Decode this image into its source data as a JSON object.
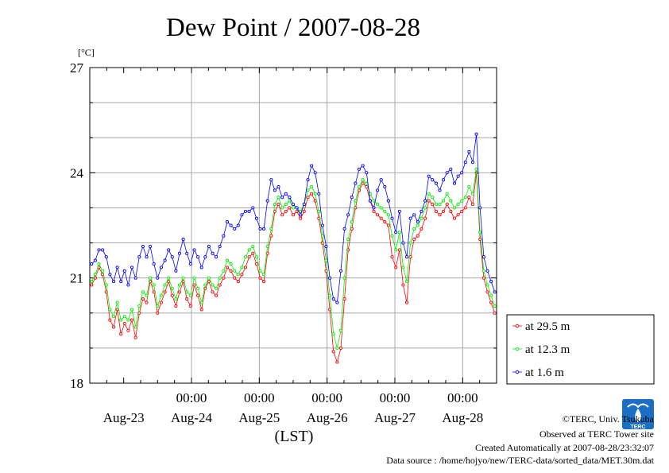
{
  "chart_data": {
    "type": "line",
    "title": "Dew Point / 2007-08-28",
    "ylabel": "[°C]",
    "xlabel": "(LST)",
    "ylim": [
      18,
      27
    ],
    "yticks": [
      "18",
      "21",
      "24",
      "27"
    ],
    "x_range_days": [
      -0.5,
      5.5
    ],
    "time_ticks": [
      "00:00",
      "00:00",
      "00:00",
      "00:00",
      "00:00"
    ],
    "time_tick_positions": [
      1,
      2,
      3,
      4,
      5
    ],
    "date_labels": [
      "Aug-23",
      "Aug-24",
      "Aug-25",
      "Aug-26",
      "Aug-27",
      "Aug-28"
    ],
    "grid": true,
    "legend_position": "bottom-right",
    "series": [
      {
        "name": "at 29.5 m",
        "color": "#ff0000",
        "values": [
          20.8,
          21.0,
          21.3,
          21.1,
          20.6,
          19.8,
          19.6,
          20.1,
          19.4,
          19.7,
          19.5,
          19.8,
          19.3,
          20.0,
          20.4,
          20.3,
          20.9,
          20.6,
          20.0,
          20.3,
          20.6,
          20.9,
          20.5,
          20.2,
          20.6,
          20.9,
          20.4,
          20.2,
          20.8,
          20.5,
          20.1,
          20.7,
          20.9,
          20.6,
          20.5,
          20.8,
          21.0,
          21.3,
          21.2,
          21.0,
          20.9,
          21.1,
          21.3,
          21.6,
          21.7,
          21.4,
          21.0,
          20.9,
          21.7,
          22.2,
          22.9,
          23.1,
          22.8,
          22.9,
          23.0,
          22.8,
          22.9,
          22.7,
          22.9,
          23.3,
          23.4,
          23.2,
          22.7,
          22.0,
          21.2,
          20.1,
          18.9,
          18.6,
          19.0,
          20.4,
          21.8,
          22.4,
          23.0,
          23.5,
          23.7,
          23.6,
          23.2,
          22.9,
          22.8,
          22.7,
          22.6,
          22.5,
          21.6,
          21.3,
          21.8,
          20.8,
          20.3,
          21.6,
          22.1,
          22.2,
          22.4,
          22.7,
          23.2,
          23.1,
          22.9,
          22.8,
          22.9,
          23.1,
          22.9,
          22.7,
          22.8,
          22.9,
          23.0,
          23.3,
          23.1,
          24.0,
          22.1,
          21.0,
          20.6,
          20.3,
          20.0
        ]
      },
      {
        "name": "at 12.3 m",
        "color": "#00ee00",
        "values": [
          20.9,
          21.1,
          21.4,
          21.2,
          20.8,
          20.1,
          19.9,
          20.3,
          19.8,
          19.9,
          19.8,
          20.1,
          19.6,
          20.2,
          20.6,
          20.5,
          21.0,
          20.8,
          20.2,
          20.5,
          20.8,
          21.0,
          20.7,
          20.4,
          20.8,
          21.0,
          20.6,
          20.5,
          21.0,
          20.7,
          20.3,
          20.8,
          21.0,
          20.8,
          20.7,
          21.0,
          21.2,
          21.5,
          21.4,
          21.2,
          21.1,
          21.3,
          21.6,
          21.8,
          21.9,
          21.6,
          21.2,
          21.1,
          21.9,
          22.4,
          23.1,
          23.3,
          23.0,
          23.1,
          23.2,
          23.0,
          23.0,
          22.9,
          23.1,
          23.5,
          23.6,
          23.4,
          22.9,
          22.2,
          21.5,
          20.5,
          19.4,
          19.0,
          19.5,
          21.0,
          22.1,
          22.6,
          23.2,
          23.6,
          23.8,
          23.7,
          23.4,
          23.2,
          23.1,
          23.0,
          22.9,
          22.8,
          22.2,
          21.8,
          22.3,
          21.3,
          20.9,
          22.0,
          22.4,
          22.5,
          22.7,
          23.0,
          23.4,
          23.3,
          23.1,
          23.1,
          23.2,
          23.4,
          23.2,
          23.0,
          23.1,
          23.2,
          23.3,
          23.6,
          23.4,
          24.1,
          22.3,
          21.2,
          20.8,
          20.5,
          20.2
        ]
      },
      {
        "name": "at 1.6 m",
        "color": "#0000ff",
        "values": [
          21.4,
          21.5,
          21.8,
          21.8,
          21.6,
          21.1,
          20.9,
          21.3,
          20.9,
          21.2,
          20.8,
          21.3,
          21.0,
          21.6,
          21.9,
          21.6,
          21.9,
          21.4,
          21.0,
          21.3,
          21.5,
          21.8,
          21.6,
          21.2,
          21.7,
          22.1,
          21.7,
          21.4,
          21.8,
          21.6,
          21.3,
          21.6,
          21.9,
          21.7,
          21.6,
          21.9,
          22.2,
          22.6,
          22.5,
          22.4,
          22.5,
          22.8,
          22.9,
          22.9,
          23.0,
          22.7,
          22.4,
          22.4,
          23.2,
          23.8,
          23.5,
          23.6,
          23.3,
          23.4,
          23.3,
          23.1,
          23.0,
          22.8,
          23.1,
          23.8,
          24.2,
          24.0,
          23.4,
          22.5,
          21.9,
          21.0,
          20.4,
          20.3,
          21.2,
          22.4,
          22.8,
          23.3,
          23.7,
          24.1,
          24.2,
          24.0,
          23.2,
          23.0,
          23.5,
          23.8,
          23.6,
          23.2,
          22.7,
          22.3,
          22.9,
          22.0,
          21.6,
          22.7,
          22.8,
          22.6,
          22.9,
          23.2,
          23.9,
          23.8,
          23.7,
          23.5,
          23.8,
          24.0,
          24.1,
          23.7,
          23.9,
          24.0,
          24.3,
          24.6,
          24.3,
          25.1,
          23.0,
          21.6,
          21.2,
          20.9,
          20.6
        ]
      }
    ]
  },
  "credits": {
    "copyright": "©TERC, Univ. Tsukuba",
    "observed": "Observed at TERC Tower site",
    "created": "Created Automatically at 2007-08-28/23:32:07",
    "source": "Data source : /home/hojyo/new/TERC-data/sorted_data/MET.30m.dat"
  },
  "logo": {
    "text": "TERC",
    "icon": "terc-logo-icon",
    "color": "#1a6fc4"
  }
}
